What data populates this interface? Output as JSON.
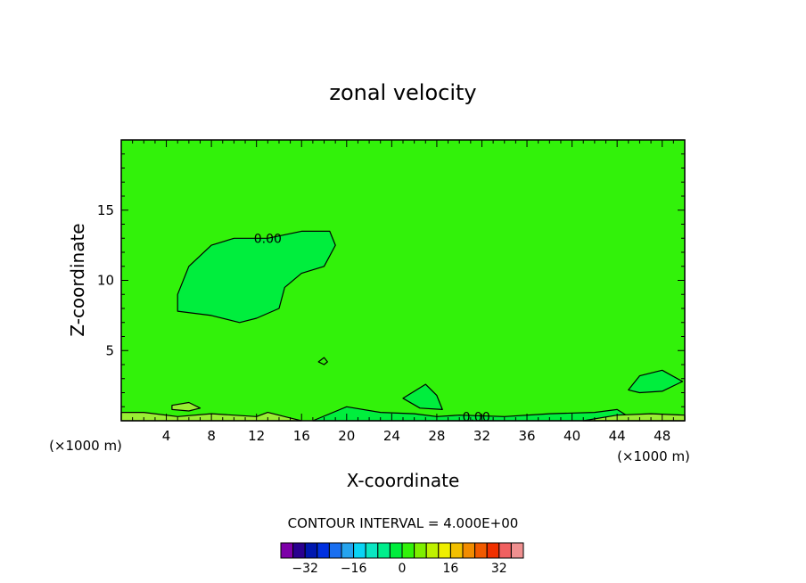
{
  "chart_data": {
    "type": "heatmap",
    "title": "zonal velocity",
    "xlabel": "X-coordinate",
    "ylabel": "Z-coordinate",
    "x_unit_left": "(×1000 m)",
    "x_unit_right": "(×1000 m)",
    "xlim": [
      0,
      50
    ],
    "ylim": [
      0,
      20
    ],
    "xticks": [
      4,
      8,
      12,
      16,
      20,
      24,
      28,
      32,
      36,
      40,
      44,
      48
    ],
    "yticks": [
      5,
      10,
      15
    ],
    "background_value": 0,
    "contour_labels": [
      {
        "text": "0.00",
        "x": 13,
        "y": 13
      },
      {
        "text": "0.00",
        "x": 31.5,
        "y": 0.3
      }
    ],
    "regions": [
      {
        "name": "upper-cell",
        "value": 2,
        "color": "#00ee3d",
        "outline": [
          [
            5,
            9
          ],
          [
            6,
            11
          ],
          [
            8,
            12.5
          ],
          [
            10,
            13
          ],
          [
            13,
            13
          ],
          [
            16,
            13.5
          ],
          [
            18.5,
            13.5
          ],
          [
            19,
            12.5
          ],
          [
            18,
            11
          ],
          [
            16,
            10.5
          ],
          [
            14.5,
            9.5
          ],
          [
            14,
            8
          ],
          [
            12,
            7.3
          ],
          [
            10.5,
            7
          ],
          [
            8,
            7.5
          ],
          [
            5,
            7.8
          ]
        ]
      },
      {
        "name": "bubble",
        "value": 0,
        "color": "#32f20a",
        "outline": [
          [
            17.5,
            4.2
          ],
          [
            18,
            4.5
          ],
          [
            18.3,
            4.2
          ],
          [
            18,
            4
          ]
        ]
      },
      {
        "name": "right-cell",
        "value": 2,
        "color": "#00ee3d",
        "outline": [
          [
            45,
            2.2
          ],
          [
            46,
            3.2
          ],
          [
            48,
            3.6
          ],
          [
            49.8,
            2.8
          ],
          [
            48,
            2.1
          ],
          [
            46,
            2
          ]
        ]
      },
      {
        "name": "mid-cell",
        "value": 2,
        "color": "#00ee3d",
        "outline": [
          [
            25,
            1.6
          ],
          [
            27,
            2.6
          ],
          [
            28,
            1.8
          ],
          [
            28.5,
            0.8
          ],
          [
            26.5,
            0.9
          ]
        ]
      },
      {
        "name": "bottom-band",
        "value": 2,
        "color": "#00ee3d",
        "outline": [
          [
            17,
            0
          ],
          [
            20,
            1
          ],
          [
            23,
            0.6
          ],
          [
            26,
            0.5
          ],
          [
            28,
            0.3
          ],
          [
            30,
            0.4
          ],
          [
            34,
            0.3
          ],
          [
            38,
            0.5
          ],
          [
            42,
            0.6
          ],
          [
            44,
            0.8
          ],
          [
            45,
            0.3
          ],
          [
            50,
            0.3
          ],
          [
            50,
            0
          ]
        ]
      },
      {
        "name": "left-band",
        "value": -2,
        "color": "#99ee33",
        "outline": [
          [
            0,
            0
          ],
          [
            0,
            0.6
          ],
          [
            2,
            0.6
          ],
          [
            5,
            0.3
          ],
          [
            8,
            0.5
          ],
          [
            12,
            0.3
          ],
          [
            13,
            0.6
          ],
          [
            15,
            0.2
          ],
          [
            16,
            0
          ]
        ]
      },
      {
        "name": "left-patch",
        "value": -2,
        "color": "#99ee33",
        "outline": [
          [
            4.5,
            1.1
          ],
          [
            6,
            1.3
          ],
          [
            7,
            0.9
          ],
          [
            6,
            0.7
          ],
          [
            4.5,
            0.8
          ]
        ]
      },
      {
        "name": "right-band",
        "value": -2,
        "color": "#99ee33",
        "outline": [
          [
            41,
            0
          ],
          [
            44,
            0.4
          ],
          [
            47,
            0.5
          ],
          [
            50,
            0.4
          ],
          [
            50,
            0
          ]
        ]
      }
    ],
    "contour_interval_text": "CONTOUR INTERVAL = 4.000E+00",
    "colorbar": {
      "colors": [
        "#7d00a8",
        "#2a008f",
        "#0018b0",
        "#0030e0",
        "#1a6ff0",
        "#26a4ee",
        "#0ad4f5",
        "#0be6c2",
        "#00ee8c",
        "#00ee3d",
        "#32f20a",
        "#7ef000",
        "#bff200",
        "#eeee00",
        "#f2c000",
        "#f28c00",
        "#f25a00",
        "#f03000",
        "#f06060",
        "#f09090"
      ],
      "tick_labels": [
        "−32",
        "−16",
        "0",
        "16",
        "32"
      ],
      "tick_values": [
        -32,
        -16,
        0,
        16,
        32
      ],
      "min": -40,
      "max": 40
    }
  }
}
